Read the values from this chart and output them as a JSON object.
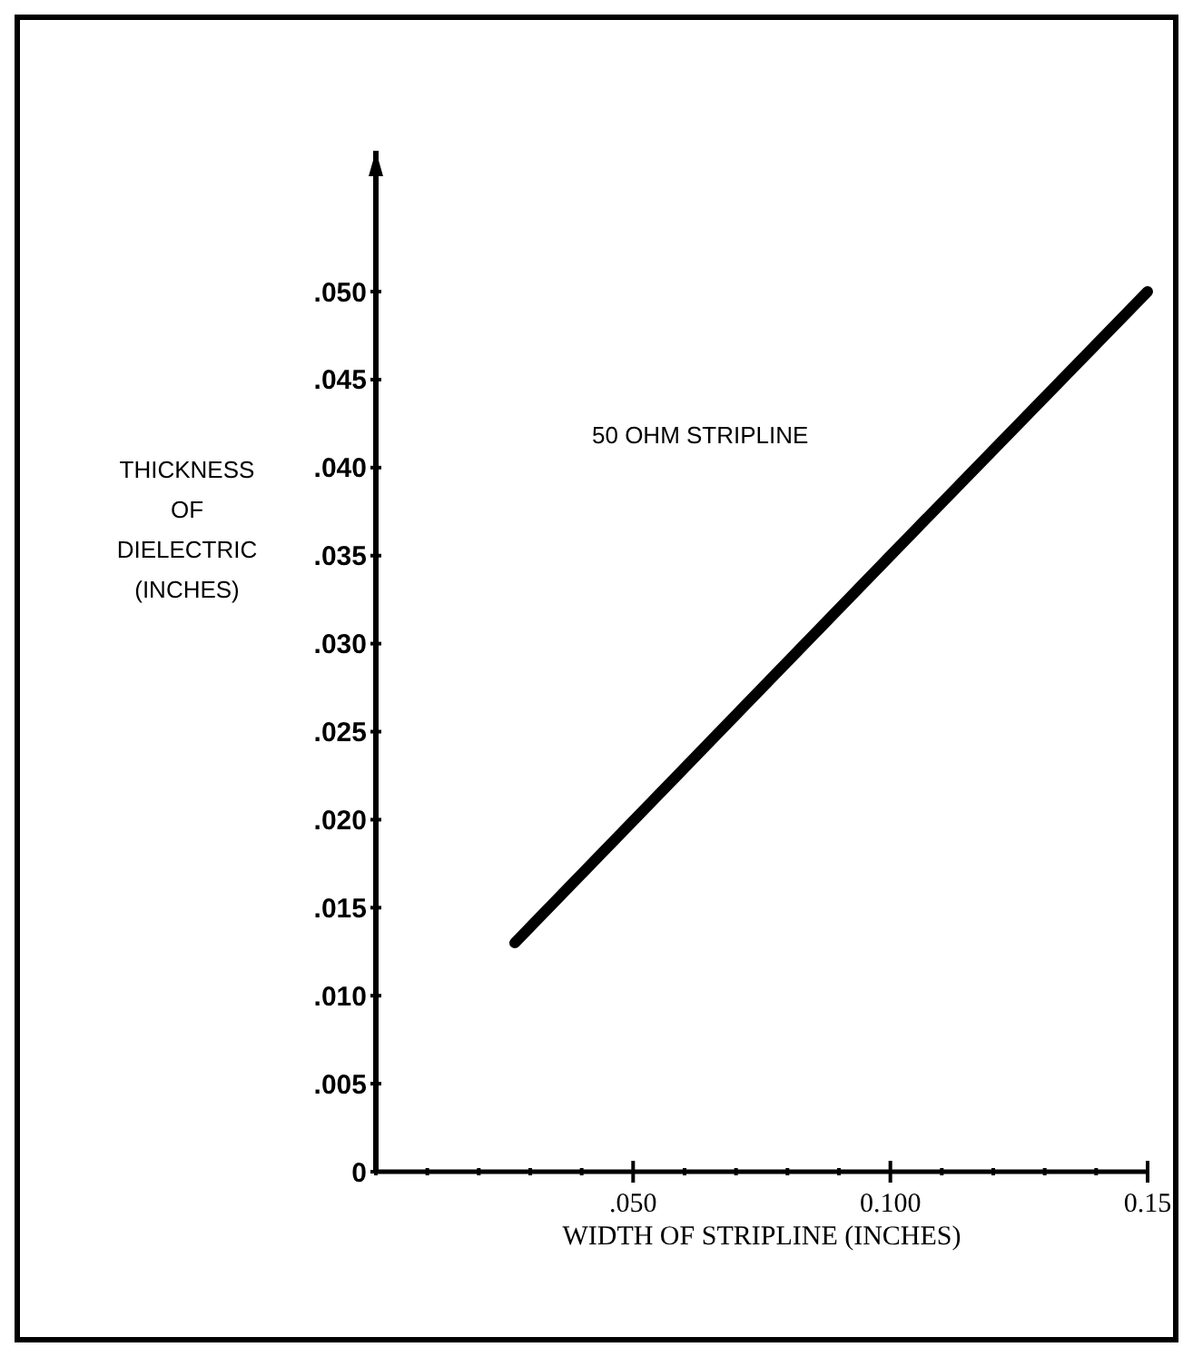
{
  "chart_data": {
    "type": "line",
    "xlabel": "WIDTH OF STRIPLINE (INCHES)",
    "ylabel": "THICKNESS OF DIELECTRIC (INCHES)",
    "annotations": [
      "50 OHM STRIPLINE"
    ],
    "x": [
      0.027,
      0.1,
      0.15
    ],
    "series": [
      {
        "color": "#000000",
        "values": [
          0.013,
          0.035,
          0.05
        ]
      }
    ],
    "xlim": [
      0,
      0.15
    ],
    "ylim": [
      0,
      0.058
    ],
    "xticks": [
      {
        "value": 0,
        "label": null
      },
      {
        "value": 0.01,
        "label": null
      },
      {
        "value": 0.02,
        "label": null
      },
      {
        "value": 0.03,
        "label": null
      },
      {
        "value": 0.04,
        "label": null
      },
      {
        "value": 0.05,
        "label": ".050"
      },
      {
        "value": 0.06,
        "label": null
      },
      {
        "value": 0.07,
        "label": null
      },
      {
        "value": 0.08,
        "label": null
      },
      {
        "value": 0.09,
        "label": null
      },
      {
        "value": 0.1,
        "label": "0.100"
      },
      {
        "value": 0.11,
        "label": null
      },
      {
        "value": 0.12,
        "label": null
      },
      {
        "value": 0.13,
        "label": null
      },
      {
        "value": 0.14,
        "label": null
      },
      {
        "value": 0.15,
        "label": "0.15"
      }
    ],
    "yticks": [
      {
        "value": 0,
        "label": "0"
      },
      {
        "value": 0.005,
        "label": ".005"
      },
      {
        "value": 0.01,
        "label": ".010"
      },
      {
        "value": 0.015,
        "label": ".015"
      },
      {
        "value": 0.02,
        "label": ".020"
      },
      {
        "value": 0.025,
        "label": ".025"
      },
      {
        "value": 0.03,
        "label": ".030"
      },
      {
        "value": 0.035,
        "label": ".035"
      },
      {
        "value": 0.04,
        "label": ".040"
      },
      {
        "value": 0.045,
        "label": ".045"
      },
      {
        "value": 0.05,
        "label": ".050"
      }
    ],
    "grid": false,
    "marker": "none",
    "line_style": "solid"
  }
}
